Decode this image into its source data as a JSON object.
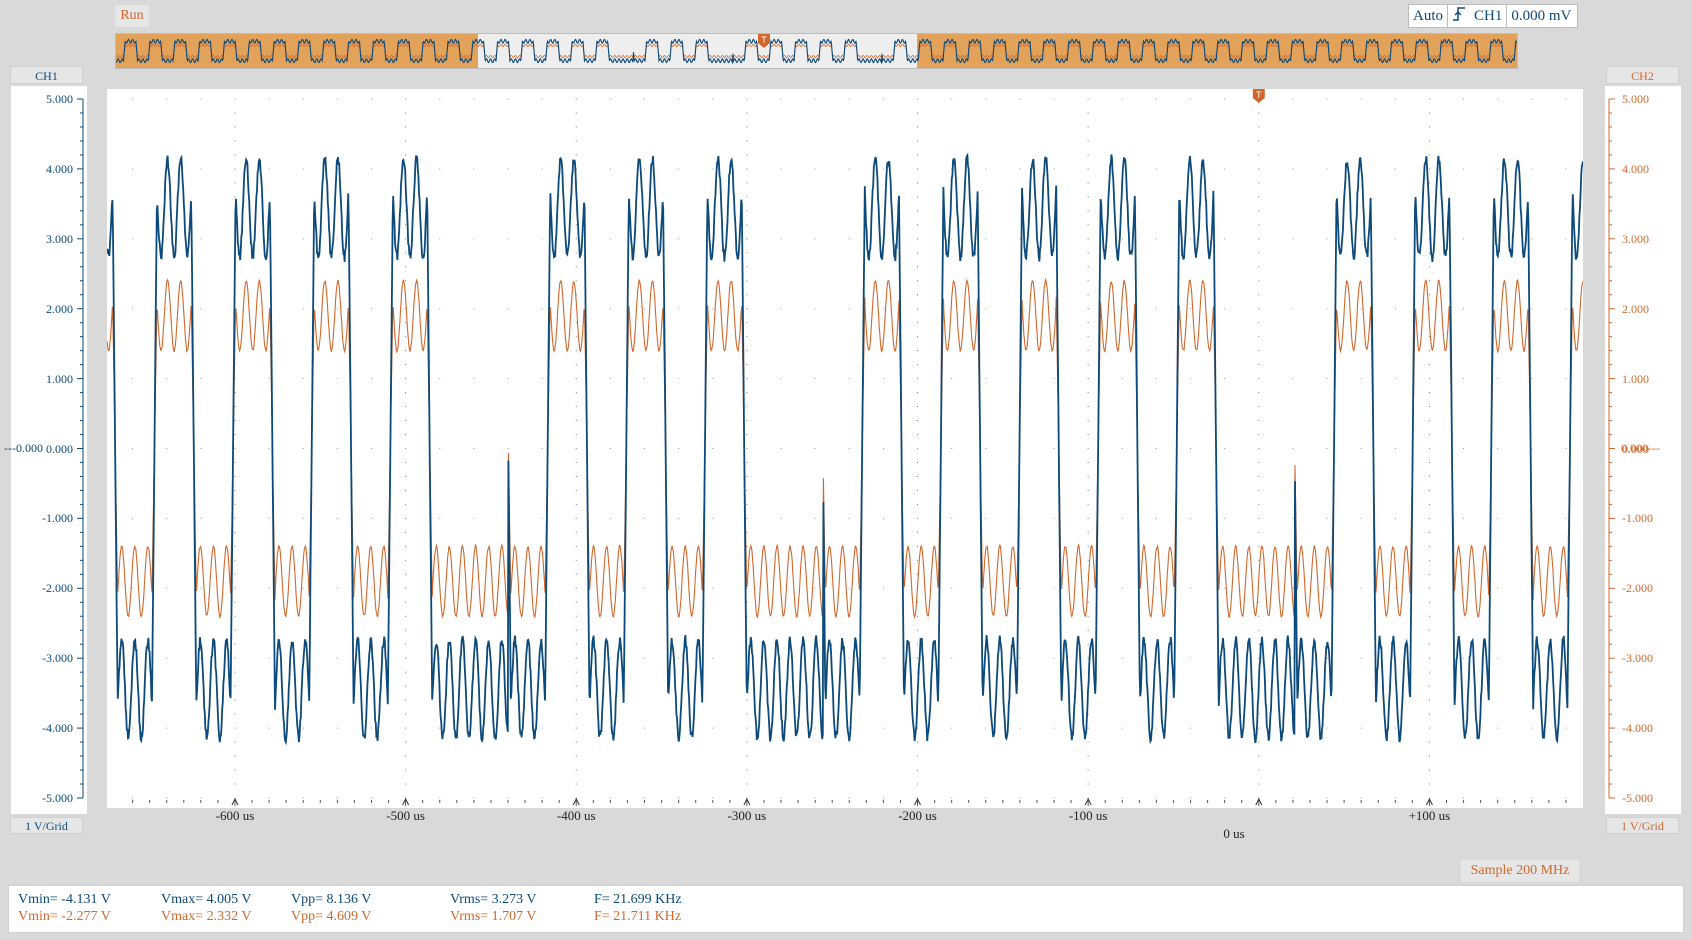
{
  "status": {
    "run_label": "Run",
    "sample_label": "Sample 200 MHz"
  },
  "trigger": {
    "mode": "Auto",
    "source": "CH1",
    "level": "0.000 mV",
    "marker": "T"
  },
  "ch1": {
    "label": "CH1",
    "scale": "1 V/Grid",
    "color": "#0b4a7a",
    "ticks": [
      "5.000",
      "4.000",
      "3.000",
      "2.000",
      "1.000",
      "0.000",
      "-1.000",
      "-2.000",
      "-3.000",
      "-4.000",
      "-5.000"
    ],
    "zero_marker": "---0.000"
  },
  "ch2": {
    "label": "CH2",
    "scale": "1 V/Grid",
    "color": "#d0682c",
    "ticks": [
      "5.000",
      "4.000",
      "3.000",
      "2.000",
      "1.000",
      "0.000",
      "-1.000",
      "-2.000",
      "-3.000",
      "-4.000",
      "-5.000"
    ],
    "zero_marker": "0.000---"
  },
  "time_axis": {
    "labels": [
      "-600 us",
      "-500 us",
      "-400 us",
      "-300 us",
      "-200 us",
      "-100 us",
      "+100 us"
    ],
    "zero_label": "0 us"
  },
  "measurements": {
    "ch1": {
      "vmin": "Vmin= -4.131 V",
      "vmax": "Vmax= 4.005 V",
      "vpp": "Vpp= 8.136 V",
      "vrms": "Vrms= 3.273 V",
      "freq": "F= 21.699 KHz"
    },
    "ch2": {
      "vmin": "Vmin= -2.277 V",
      "vmax": "Vmax= 2.332 V",
      "vpp": "Vpp= 4.609 V",
      "vrms": "Vrms= 1.707 V",
      "freq": "F= 21.711 KHz"
    }
  },
  "chart_data": {
    "type": "line",
    "x_unit": "us",
    "xlim": [
      -675,
      190
    ],
    "ylim": [
      -5,
      5
    ],
    "series": [
      {
        "name": "CH1",
        "amplitude": 4.0,
        "frequency_khz": 21.699,
        "vmin": -4.131,
        "vmax": 4.005
      },
      {
        "name": "CH2",
        "amplitude": 2.3,
        "frequency_khz": 21.711,
        "vmin": -2.277,
        "vmax": 2.332
      }
    ]
  }
}
